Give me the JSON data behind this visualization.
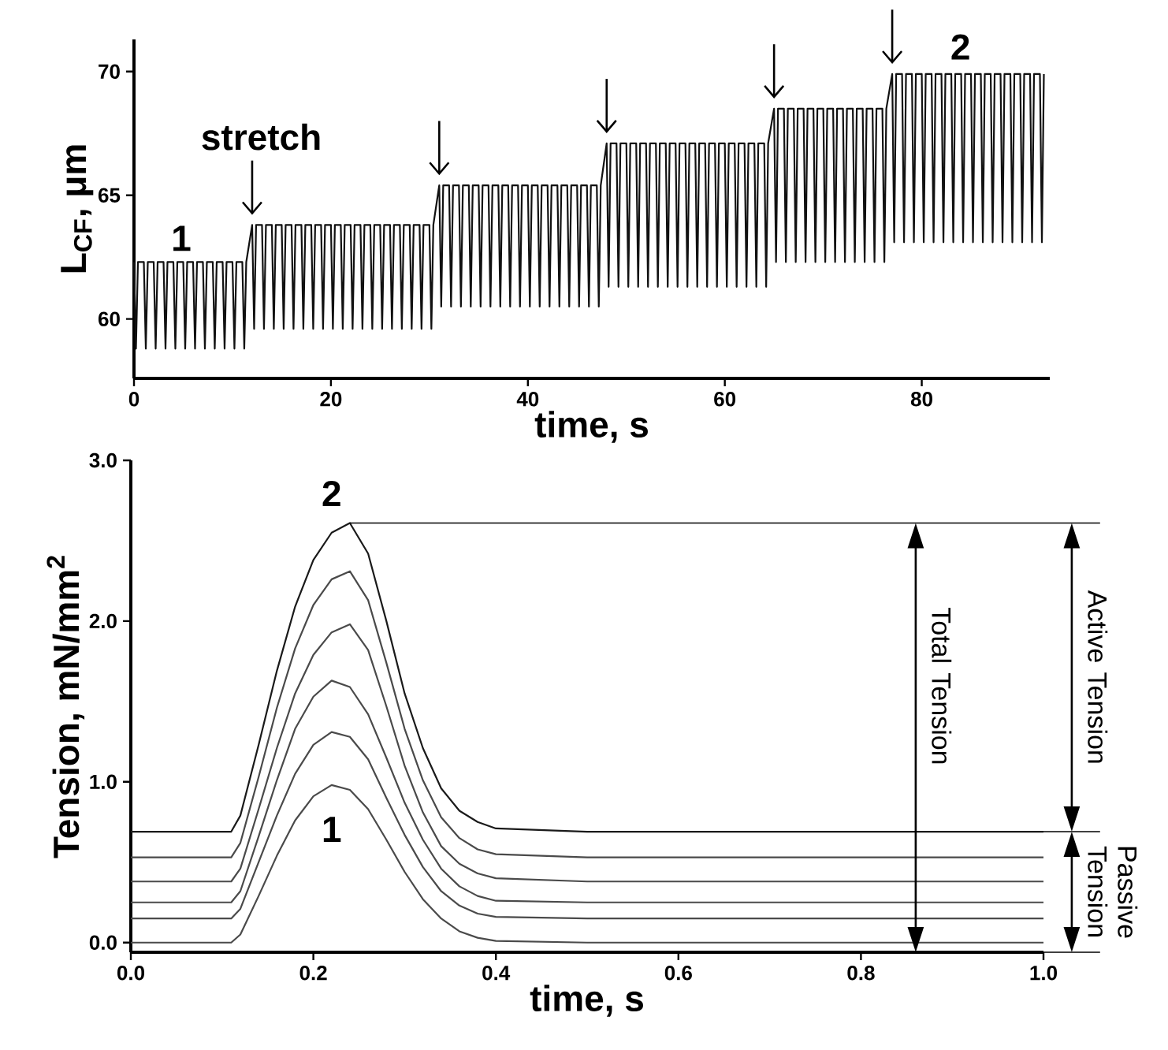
{
  "chart_data": [
    {
      "type": "line",
      "xlabel": "time, s",
      "ylabel": "L$_{CF}$, μm",
      "xlim": [
        0,
        93
      ],
      "ylim": [
        57.6,
        71.3
      ],
      "xticks": [
        0,
        20,
        40,
        60,
        80
      ],
      "yticks": [
        60,
        65,
        70
      ],
      "x": [
        0,
        0.2,
        0.4,
        1,
        1.2,
        1.4,
        2,
        2.2,
        2.4,
        3,
        3.2,
        3.4,
        4,
        4.2,
        4.4,
        5,
        5.2,
        5.4,
        6,
        6.2,
        6.4,
        7,
        7.2,
        7.4,
        8,
        8.2,
        8.4,
        9,
        9.2,
        9.4,
        10,
        10.2,
        10.4,
        11,
        11.2,
        11.4,
        12,
        12.2,
        12.4,
        13,
        13.2,
        13.4,
        14,
        14.2,
        14.4,
        15,
        15.2,
        15.4,
        16,
        16.2,
        16.4,
        17,
        17.2,
        17.4,
        18,
        18.2,
        18.4,
        19,
        19.2,
        19.4,
        20,
        20.2,
        20.4,
        21,
        21.2,
        21.4,
        22,
        22.2,
        22.4,
        23,
        23.2,
        23.4,
        24,
        24.2,
        24.4,
        25,
        25.2,
        25.4,
        26,
        26.2,
        26.4,
        27,
        27.2,
        27.4,
        28,
        28.2,
        28.4,
        29,
        29.2,
        29.4,
        30,
        30.2,
        30.4,
        31,
        31.2,
        31.4,
        32,
        32.2,
        32.4,
        33,
        33.2,
        33.4,
        34,
        34.2,
        34.4,
        35,
        35.2,
        35.4,
        36,
        36.2,
        36.4,
        37,
        37.2,
        37.4,
        38,
        38.2,
        38.4,
        39,
        39.2,
        39.4,
        40,
        40.2,
        40.4,
        41,
        41.2,
        41.4,
        42,
        42.2,
        42.4,
        43,
        43.2,
        43.4,
        44,
        44.2,
        44.4,
        45,
        45.2,
        45.4,
        46,
        46.2,
        46.4,
        47,
        47.2,
        47.4,
        48,
        48.2,
        48.4,
        49,
        49.2,
        49.4,
        50,
        50.2,
        50.4,
        51,
        51.2,
        51.4,
        52,
        52.2,
        52.4,
        53,
        53.2,
        53.4,
        54,
        54.2,
        54.4,
        55,
        55.2,
        55.4,
        56,
        56.2,
        56.4,
        57,
        57.2,
        57.4,
        58,
        58.2,
        58.4,
        59,
        59.2,
        59.4,
        60,
        60.2,
        60.4,
        61,
        61.2,
        61.4,
        62,
        62.2,
        62.4,
        63,
        63.2,
        63.4,
        64,
        64.2,
        64.4,
        65,
        65.2,
        65.4,
        66,
        66.2,
        66.4,
        67,
        67.2,
        67.4,
        68,
        68.2,
        68.4,
        69,
        69.2,
        69.4,
        70,
        70.2,
        70.4,
        71,
        71.2,
        71.4,
        72,
        72.2,
        72.4,
        73,
        73.2,
        73.4,
        74,
        74.2,
        74.4,
        75,
        75.2,
        75.4,
        76,
        76.2,
        76.4,
        77,
        77.2,
        77.4,
        78,
        78.2,
        78.4,
        79,
        79.2,
        79.4,
        80,
        80.2,
        80.4,
        81,
        81.2,
        81.4,
        82,
        82.2,
        82.4,
        83,
        83.2,
        83.4,
        84,
        84.2,
        84.4,
        85,
        85.2,
        85.4,
        86,
        86.2,
        86.4,
        87,
        87.2,
        87.4,
        88,
        88.2,
        88.4,
        89,
        89.2,
        89.4,
        90,
        90.2,
        90.4,
        91,
        91.2,
        91.4,
        92,
        92.2,
        92.4
      ],
      "series": [
        {
          "color": "#111111",
          "values": [
            62.3,
            58.8,
            62.3,
            62.3,
            58.8,
            62.3,
            62.3,
            58.8,
            62.3,
            62.3,
            58.8,
            62.3,
            62.3,
            58.8,
            62.3,
            62.3,
            58.8,
            62.3,
            62.3,
            58.8,
            62.3,
            62.3,
            58.8,
            62.3,
            62.3,
            58.8,
            62.3,
            62.3,
            58.8,
            62.3,
            62.3,
            58.8,
            62.3,
            62.3,
            58.8,
            62.3,
            63.8,
            59.6,
            63.8,
            63.8,
            59.6,
            63.8,
            63.8,
            59.6,
            63.8,
            63.8,
            59.6,
            63.8,
            63.8,
            59.6,
            63.8,
            63.8,
            59.6,
            63.8,
            63.8,
            59.6,
            63.8,
            63.8,
            59.6,
            63.8,
            63.8,
            59.6,
            63.8,
            63.8,
            59.6,
            63.8,
            63.8,
            59.6,
            63.8,
            63.8,
            59.6,
            63.8,
            63.8,
            59.6,
            63.8,
            63.8,
            59.6,
            63.8,
            63.8,
            59.6,
            63.8,
            63.8,
            59.6,
            63.8,
            63.8,
            59.6,
            63.8,
            63.8,
            59.6,
            63.8,
            63.8,
            59.6,
            63.8,
            65.4,
            60.5,
            65.4,
            65.4,
            60.5,
            65.4,
            65.4,
            60.5,
            65.4,
            65.4,
            60.5,
            65.4,
            65.4,
            60.5,
            65.4,
            65.4,
            60.5,
            65.4,
            65.4,
            60.5,
            65.4,
            65.4,
            60.5,
            65.4,
            65.4,
            60.5,
            65.4,
            65.4,
            60.5,
            65.4,
            65.4,
            60.5,
            65.4,
            65.4,
            60.5,
            65.4,
            65.4,
            60.5,
            65.4,
            65.4,
            60.5,
            65.4,
            65.4,
            60.5,
            65.4,
            65.4,
            60.5,
            65.4,
            65.4,
            60.5,
            65.4,
            67.1,
            61.3,
            67.1,
            67.1,
            61.3,
            67.1,
            67.1,
            61.3,
            67.1,
            67.1,
            61.3,
            67.1,
            67.1,
            61.3,
            67.1,
            67.1,
            61.3,
            67.1,
            67.1,
            61.3,
            67.1,
            67.1,
            61.3,
            67.1,
            67.1,
            61.3,
            67.1,
            67.1,
            61.3,
            67.1,
            67.1,
            61.3,
            67.1,
            67.1,
            61.3,
            67.1,
            67.1,
            61.3,
            67.1,
            67.1,
            61.3,
            67.1,
            67.1,
            61.3,
            67.1,
            67.1,
            61.3,
            67.1,
            67.1,
            61.3,
            67.1,
            68.5,
            62.3,
            68.5,
            68.5,
            62.3,
            68.5,
            68.5,
            62.3,
            68.5,
            68.5,
            62.3,
            68.5,
            68.5,
            62.3,
            68.5,
            68.5,
            62.3,
            68.5,
            68.5,
            62.3,
            68.5,
            68.5,
            62.3,
            68.5,
            68.5,
            62.3,
            68.5,
            68.5,
            62.3,
            68.5,
            68.5,
            62.3,
            68.5,
            68.5,
            62.3,
            68.5,
            69.9,
            63.1,
            69.9,
            69.9,
            63.1,
            69.9,
            69.9,
            63.1,
            69.9,
            69.9,
            63.1,
            69.9,
            69.9,
            63.1,
            69.9,
            69.9,
            63.1,
            69.9,
            69.9,
            63.1,
            69.9,
            69.9,
            63.1,
            69.9,
            69.9,
            63.1,
            69.9,
            69.9,
            63.1,
            69.9,
            69.9,
            63.1,
            69.9,
            69.9,
            63.1,
            69.9,
            69.9,
            63.1,
            69.9,
            69.9,
            63.1,
            69.9,
            69.9,
            63.1,
            69.9,
            69.9,
            63.1,
            69.9
          ]
        }
      ],
      "annotations": [
        "1",
        "stretch",
        "2"
      ]
    },
    {
      "type": "line",
      "xlabel": "time, s",
      "ylabel": "Tension, mN/mm$^{2}$",
      "xlim": [
        0,
        1
      ],
      "ylim": [
        -0.06,
        3
      ],
      "xticks": [
        {
          "value": 0,
          "label": "0.0"
        },
        {
          "value": 0.2,
          "label": "0.2"
        },
        {
          "value": 0.4,
          "label": "0.4"
        },
        {
          "value": 0.6,
          "label": "0.6"
        },
        {
          "value": 0.8,
          "label": "0.8"
        },
        {
          "value": 1,
          "label": "1.0"
        }
      ],
      "yticks": [
        {
          "value": 0,
          "label": "0.0"
        },
        {
          "value": 1,
          "label": "1.0"
        },
        {
          "value": 2,
          "label": "2.0"
        },
        {
          "value": 3,
          "label": "3.0"
        }
      ],
      "x": [
        0,
        0.11,
        0.12,
        0.14,
        0.16,
        0.18,
        0.2,
        0.22,
        0.24,
        0.26,
        0.28,
        0.3,
        0.32,
        0.34,
        0.36,
        0.38,
        0.4,
        0.5,
        0.6,
        0.7,
        0.8,
        0.9,
        1
      ],
      "series": [
        {
          "color": "#4a4a4a",
          "values": [
            0,
            0,
            0.05,
            0.29,
            0.54,
            0.76,
            0.91,
            0.98,
            0.95,
            0.83,
            0.64,
            0.44,
            0.27,
            0.15,
            0.07,
            0.03,
            0.01,
            0,
            0,
            0,
            0,
            0,
            0
          ]
        },
        {
          "color": "#4a4a4a",
          "values": [
            0.15,
            0.15,
            0.21,
            0.5,
            0.79,
            1.05,
            1.23,
            1.31,
            1.28,
            1.14,
            0.9,
            0.67,
            0.47,
            0.32,
            0.23,
            0.18,
            0.16,
            0.15,
            0.15,
            0.15,
            0.15,
            0.15,
            0.15
          ]
        },
        {
          "color": "#4a4a4a",
          "values": [
            0.25,
            0.25,
            0.32,
            0.66,
            1.01,
            1.33,
            1.53,
            1.63,
            1.59,
            1.42,
            1.15,
            0.87,
            0.64,
            0.46,
            0.35,
            0.29,
            0.26,
            0.25,
            0.25,
            0.25,
            0.25,
            0.25,
            0.25
          ]
        },
        {
          "color": "#4a4a4a",
          "values": [
            0.38,
            0.38,
            0.46,
            0.83,
            1.21,
            1.55,
            1.79,
            1.93,
            1.98,
            1.82,
            1.47,
            1.1,
            0.81,
            0.6,
            0.49,
            0.43,
            0.4,
            0.38,
            0.38,
            0.38,
            0.38,
            0.38,
            0.38
          ]
        },
        {
          "color": "#4a4a4a",
          "values": [
            0.53,
            0.53,
            0.62,
            1.03,
            1.46,
            1.83,
            2.1,
            2.26,
            2.31,
            2.13,
            1.74,
            1.33,
            1.01,
            0.78,
            0.65,
            0.58,
            0.55,
            0.53,
            0.53,
            0.53,
            0.53,
            0.53,
            0.53
          ]
        },
        {
          "color": "#1a1a1a",
          "values": [
            0.69,
            0.69,
            0.79,
            1.23,
            1.69,
            2.09,
            2.38,
            2.55,
            2.61,
            2.42,
            2,
            1.55,
            1.21,
            0.96,
            0.82,
            0.75,
            0.71,
            0.69,
            0.69,
            0.69,
            0.69,
            0.69,
            0.69
          ]
        }
      ],
      "ref_lines": [
        {
          "axis": "y",
          "value": 2.61
        }
      ],
      "annotations": [
        "2",
        "1",
        "Total Tension",
        "Active Tension",
        "Passive Tension"
      ]
    }
  ]
}
